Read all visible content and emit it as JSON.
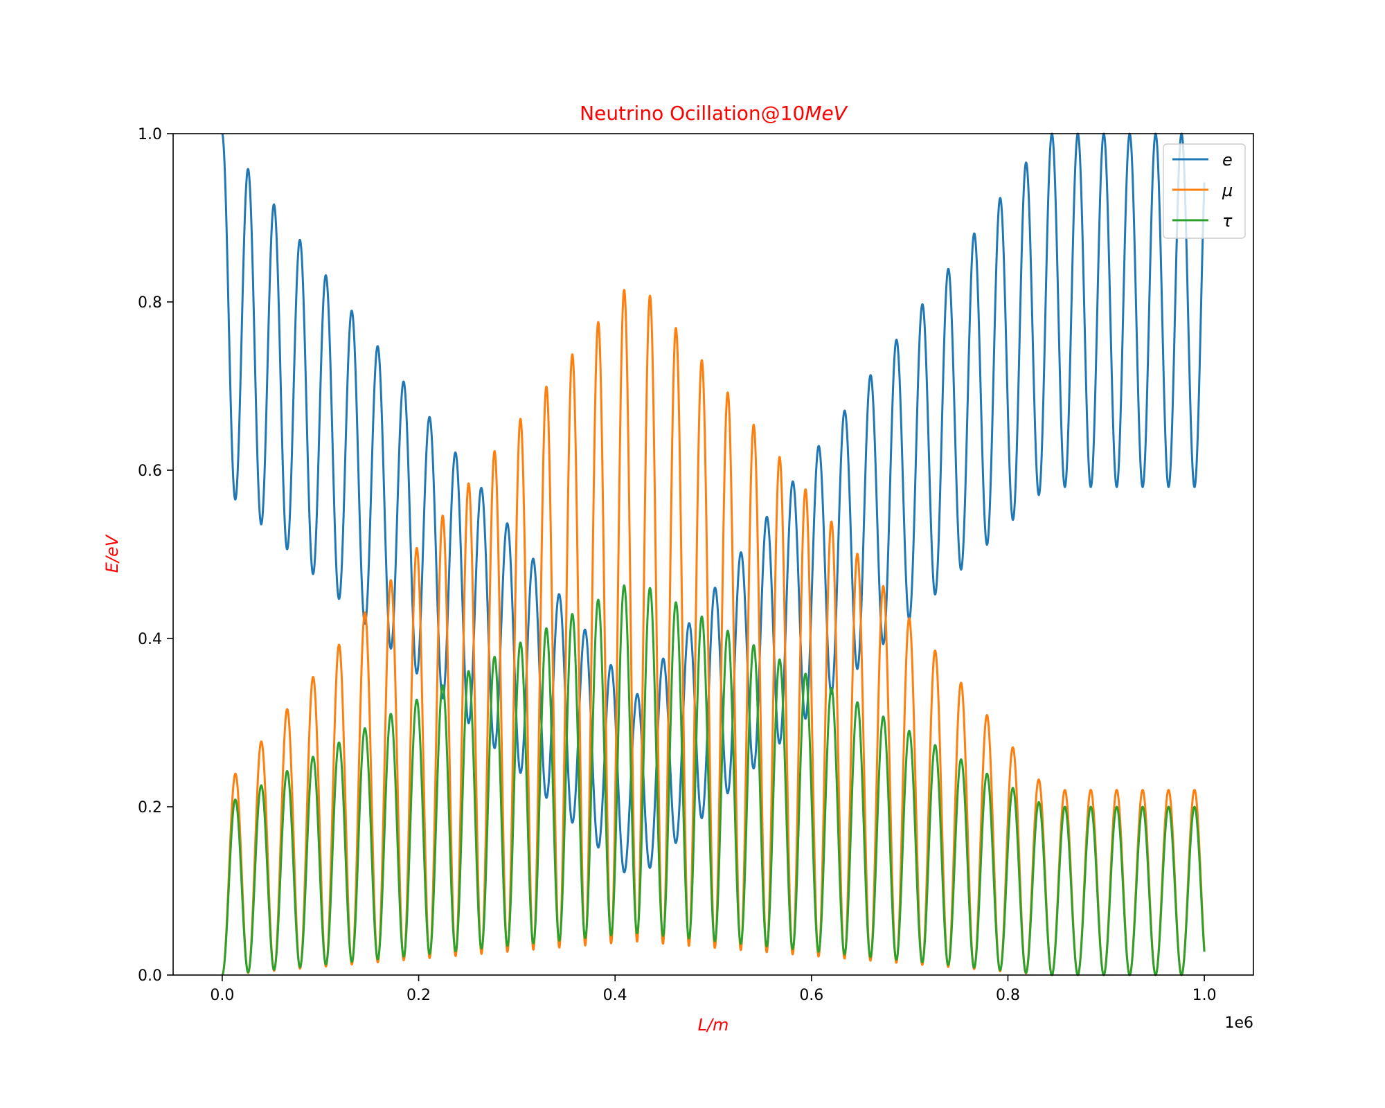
{
  "chart_data": {
    "type": "line",
    "title": {
      "prefix": "Neutrino Ocillation@10",
      "suffix": "MeV"
    },
    "xlabel": "L/m",
    "ylabel": "E/eV",
    "x_offset_label": "1e6",
    "xlim": [
      -0.05,
      1.05
    ],
    "ylim": [
      0,
      1.0
    ],
    "x_ticks": [
      0.0,
      0.2,
      0.4,
      0.6,
      0.8,
      1.0
    ],
    "x_tick_labels": [
      "0.0",
      "0.2",
      "0.4",
      "0.6",
      "0.8",
      "1.0"
    ],
    "y_ticks": [
      0.0,
      0.2,
      0.4,
      0.6,
      0.8,
      1.0
    ],
    "y_tick_labels": [
      "0.0",
      "0.2",
      "0.4",
      "0.6",
      "0.8",
      "1.0"
    ],
    "x_unit_scale": 1000000,
    "x_range": [
      0,
      1000000
    ],
    "grid": false,
    "legend_position": "top-right",
    "title_color": "#ff0000",
    "label_color": "#ff0000",
    "oscillation": {
      "fast_period": 26400,
      "slow_envelope_center": 420000,
      "envelope_half_width": 420000
    },
    "series": [
      {
        "name": "e",
        "color": "#1f77b4",
        "peak_range": [
          1.0,
          0.33
        ],
        "trough_range": [
          0.58,
          0.11
        ]
      },
      {
        "name": "μ",
        "color": "#ff7f0e",
        "peak_range": [
          0.22,
          0.83
        ],
        "trough_range": [
          0.0,
          0.04
        ]
      },
      {
        "name": "τ",
        "color": "#2ca02c",
        "peak_range": [
          0.2,
          0.47
        ],
        "trough_range": [
          0.0,
          0.05
        ]
      }
    ]
  }
}
